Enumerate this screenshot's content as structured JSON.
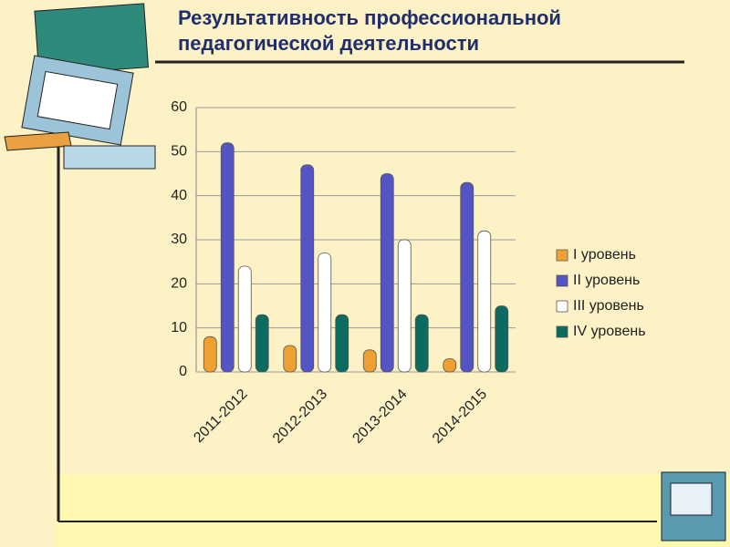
{
  "chart_data": {
    "type": "bar",
    "title": "Результативность профессиональной педагогической деятельности",
    "categories": [
      "2011-2012",
      "2012-2013",
      "2013-2014",
      "2014-2015"
    ],
    "series": [
      {
        "name": "I уровень",
        "color": "#f0a030",
        "values": [
          8,
          6,
          5,
          3
        ]
      },
      {
        "name": "II уровень",
        "color": "#5454c4",
        "values": [
          52,
          47,
          45,
          43
        ]
      },
      {
        "name": "III уровень",
        "color": "#ffffff",
        "values": [
          24,
          27,
          30,
          32
        ]
      },
      {
        "name": "IV уровень",
        "color": "#0b6b60",
        "values": [
          13,
          13,
          13,
          15
        ]
      }
    ],
    "ylim": [
      0,
      60
    ],
    "yticks": [
      0,
      10,
      20,
      30,
      40,
      50,
      60
    ],
    "grid": true,
    "legend": "right"
  }
}
